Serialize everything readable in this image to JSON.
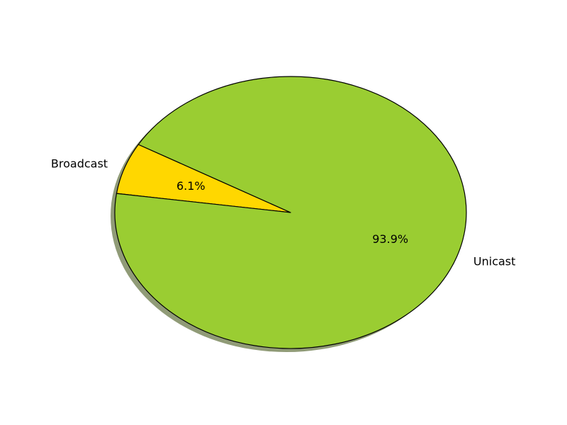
{
  "chart_data": {
    "type": "pie",
    "categories": [
      "Broadcast",
      "Unicast"
    ],
    "values": [
      6.1,
      93.9
    ],
    "percent_labels": [
      "6.1%",
      "93.9%"
    ],
    "colors": [
      "#ffd700",
      "#9acd32"
    ],
    "shadow": true,
    "edge_color": "#000000"
  }
}
